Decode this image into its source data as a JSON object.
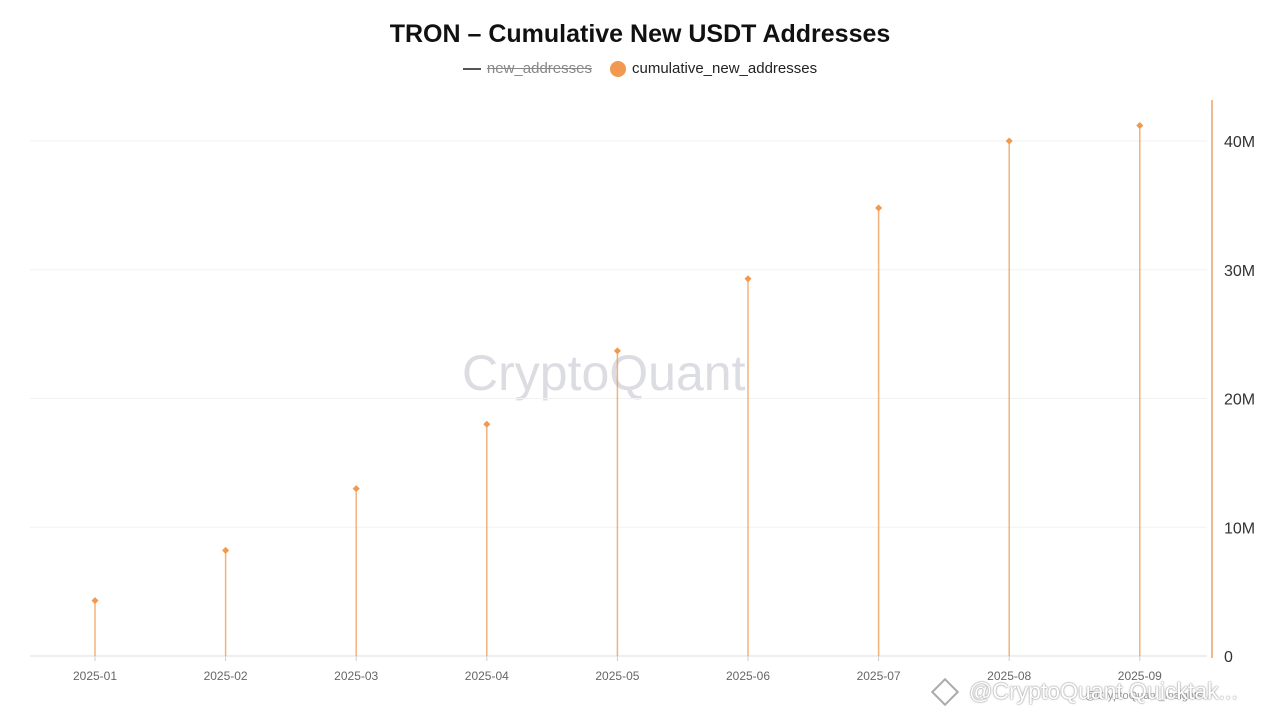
{
  "title": "TRON – Cumulative New USDT Addresses",
  "legend": {
    "hidden_series": "new_addresses",
    "active_series": "cumulative_new_addresses"
  },
  "watermark": "CryptoQuant",
  "brand_text": "@CryptoQuant Quicktak...",
  "sub_brand_text": "@CryptoQuant_Insights...",
  "colors": {
    "series": "#f0994f",
    "axis": "#e8a36b",
    "grid": "#f2f2f2"
  },
  "chart_data": {
    "type": "bar",
    "categories": [
      "2025-01",
      "2025-02",
      "2025-03",
      "2025-04",
      "2025-05",
      "2025-06",
      "2025-07",
      "2025-08",
      "2025-09"
    ],
    "series": [
      {
        "name": "cumulative_new_addresses",
        "values": [
          4300000,
          8200000,
          13000000,
          18000000,
          23700000,
          29300000,
          34800000,
          40000000,
          41200000
        ]
      }
    ],
    "y_axis": {
      "position": "right",
      "ticks": [
        0,
        10000000,
        20000000,
        30000000,
        40000000
      ],
      "tick_labels": [
        "0",
        "10M",
        "20M",
        "30M",
        "40M"
      ],
      "ylim": [
        0,
        40000000
      ]
    },
    "grid": true,
    "legend_position": "top-center"
  }
}
